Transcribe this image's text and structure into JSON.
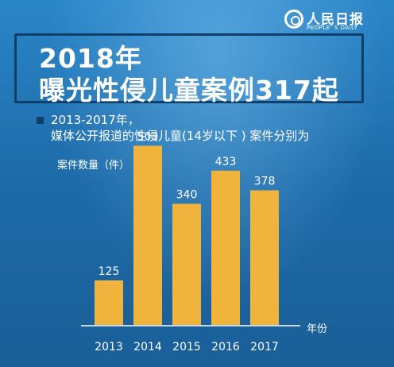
{
  "logo": {
    "name_cn": "人民日报",
    "name_en": "PEOPLE' S DAILY",
    "icon": "people-daily-at-icon"
  },
  "headline": {
    "line1": "2018年",
    "line2": "曝光性侵儿童案例317起"
  },
  "subtitle": {
    "line1": "2013-2017年，",
    "line2": "媒体公开报道的性侵儿童(14岁以下 ) 案件分别为"
  },
  "colors": {
    "background": "#1e6fae",
    "bar": "#f0b43c",
    "accent_dark": "#0e3f6b"
  },
  "chart_data": {
    "type": "bar",
    "ylabel": "案件数量（件）",
    "xlabel": "年份",
    "categories": [
      "2013",
      "2014",
      "2015",
      "2016",
      "2017"
    ],
    "values": [
      125,
      503,
      340,
      433,
      378
    ],
    "ylim": [
      0,
      600
    ],
    "grid": false,
    "data_labels": true
  }
}
